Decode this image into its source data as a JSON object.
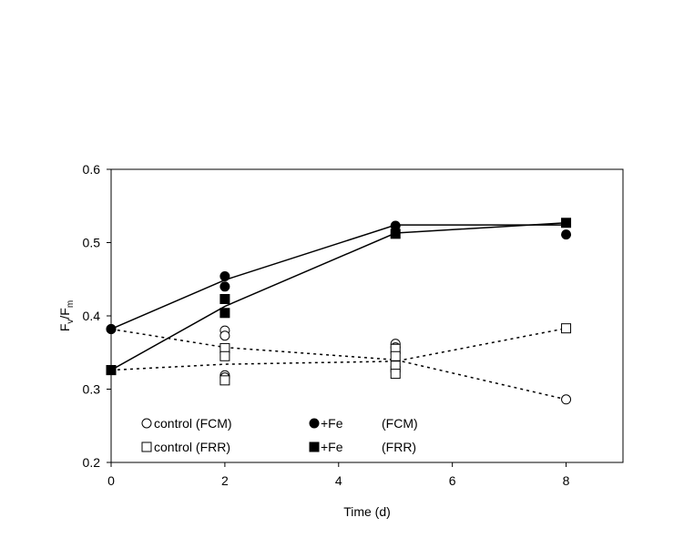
{
  "chart_data": {
    "type": "scatter",
    "xlabel": "Time (d)",
    "ylabel": {
      "main": "F",
      "sub1": "v",
      "slash": "/F",
      "sub2": "m"
    },
    "xlim": [
      0,
      9
    ],
    "ylim": [
      0.2,
      0.6
    ],
    "xticks": [
      0,
      2,
      4,
      6,
      8
    ],
    "yticks": [
      0.2,
      0.3,
      0.4,
      0.5,
      0.6
    ],
    "xtick_labels": [
      "0",
      "2",
      "4",
      "6",
      "8"
    ],
    "ytick_labels": [
      "0.2",
      "0.3",
      "0.4",
      "0.5",
      "0.6"
    ],
    "grid": false,
    "legend_position": "bottom-left inside",
    "series": [
      {
        "name": "control (FCM)",
        "label_main": "control ",
        "label_method": "(FCM)",
        "marker": "open-circle",
        "line": "dotted",
        "points": [
          [
            0,
            0.382
          ],
          [
            2,
            0.38
          ],
          [
            2,
            0.373
          ],
          [
            2,
            0.319
          ],
          [
            2,
            0.316
          ],
          [
            5,
            0.362
          ],
          [
            5,
            0.357
          ],
          [
            5,
            0.33
          ],
          [
            5,
            0.324
          ],
          [
            8,
            0.286
          ]
        ],
        "line_points": [
          [
            0,
            0.382
          ],
          [
            2,
            0.357
          ],
          [
            5,
            0.34
          ],
          [
            8,
            0.286
          ]
        ]
      },
      {
        "name": "control (FRR)",
        "label_main": "control ",
        "label_method": "(FRR)",
        "marker": "open-square",
        "line": "dotted",
        "points": [
          [
            0,
            0.326
          ],
          [
            2,
            0.356
          ],
          [
            2,
            0.345
          ],
          [
            2,
            0.312
          ],
          [
            5,
            0.355
          ],
          [
            5,
            0.345
          ],
          [
            5,
            0.332
          ],
          [
            5,
            0.321
          ],
          [
            8,
            0.383
          ]
        ],
        "line_points": [
          [
            0,
            0.326
          ],
          [
            2,
            0.334
          ],
          [
            5,
            0.338
          ],
          [
            8,
            0.383
          ]
        ]
      },
      {
        "name": "+Fe (FCM)",
        "label_main": "+Fe",
        "label_method": "(FCM)",
        "marker": "filled-circle",
        "line": "solid",
        "points": [
          [
            0,
            0.382
          ],
          [
            2,
            0.454
          ],
          [
            2,
            0.44
          ],
          [
            5,
            0.523
          ],
          [
            8,
            0.511
          ]
        ],
        "line_points": [
          [
            0,
            0.382
          ],
          [
            2,
            0.449
          ],
          [
            5,
            0.524
          ],
          [
            8,
            0.524
          ]
        ]
      },
      {
        "name": "+Fe (FRR)",
        "label_main": "+Fe",
        "label_method": "(FRR)",
        "marker": "filled-square",
        "line": "solid",
        "points": [
          [
            0,
            0.326
          ],
          [
            2,
            0.423
          ],
          [
            2,
            0.404
          ],
          [
            5,
            0.512
          ],
          [
            8,
            0.527
          ]
        ],
        "line_points": [
          [
            0,
            0.326
          ],
          [
            2,
            0.413
          ],
          [
            5,
            0.513
          ],
          [
            8,
            0.527
          ]
        ]
      }
    ]
  }
}
